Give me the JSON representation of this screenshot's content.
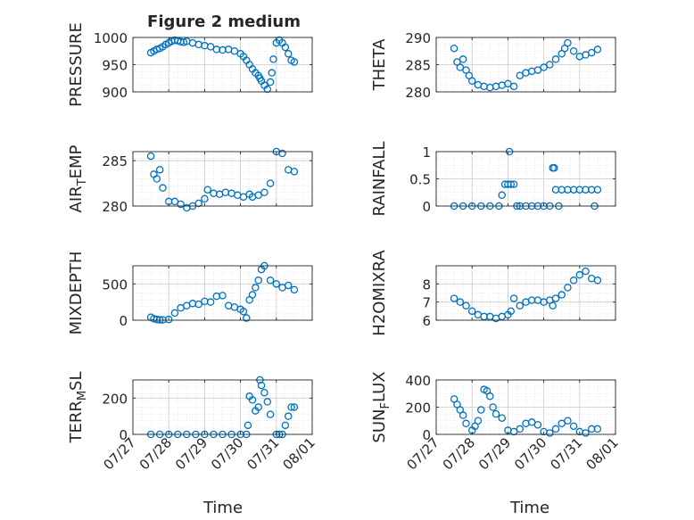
{
  "figure": {
    "title": "Figure 2 medium",
    "marker_color": "#0072BD",
    "date_ticks": [
      "07/27",
      "07/28",
      "07/29",
      "07/30",
      "07/31",
      "08/01"
    ],
    "time_label": "Time"
  },
  "chart_data": [
    {
      "type": "scatter",
      "id": "pressure",
      "ylabel": "PRESSURE",
      "xlim": [
        "07/27",
        "08/01"
      ],
      "ylim": [
        900,
        1000
      ],
      "yticks": [
        "1000",
        "950",
        "900"
      ],
      "grid": true,
      "x": [
        "07/27 12:00",
        "07/27 14:00",
        "07/27 16:00",
        "07/27 18:00",
        "07/27 20:00",
        "07/27 22:00",
        "07/28 00:00",
        "07/28 02:00",
        "07/28 04:00",
        "07/28 06:00",
        "07/28 08:00",
        "07/28 10:00",
        "07/28 12:00",
        "07/28 16:00",
        "07/28 20:00",
        "07/29 00:00",
        "07/29 04:00",
        "07/29 08:00",
        "07/29 12:00",
        "07/29 16:00",
        "07/29 20:00",
        "07/30 00:00",
        "07/30 02:00",
        "07/30 04:00",
        "07/30 06:00",
        "07/30 08:00",
        "07/30 10:00",
        "07/30 12:00",
        "07/30 13:00",
        "07/30 14:00",
        "07/30 16:00",
        "07/30 18:00",
        "07/30 20:00",
        "07/30 21:00",
        "07/30 22:00",
        "07/31 00:00",
        "07/31 02:00",
        "07/31 04:00",
        "07/31 06:00",
        "07/31 08:00",
        "07/31 10:00",
        "07/31 12:00"
      ],
      "y": [
        972,
        975,
        978,
        980,
        983,
        987,
        990,
        993,
        995,
        994,
        992,
        991,
        993,
        990,
        987,
        985,
        983,
        978,
        977,
        978,
        975,
        970,
        965,
        958,
        950,
        942,
        935,
        930,
        925,
        920,
        912,
        905,
        918,
        935,
        960,
        990,
        995,
        990,
        982,
        970,
        958,
        955
      ]
    },
    {
      "type": "scatter",
      "id": "theta",
      "ylabel": "THETA",
      "xlim": [
        "07/27",
        "08/01"
      ],
      "ylim": [
        280,
        290
      ],
      "yticks": [
        "290",
        "285",
        "280"
      ],
      "grid": true,
      "x": [
        "07/27 12:00",
        "07/27 14:00",
        "07/27 16:00",
        "07/27 18:00",
        "07/27 20:00",
        "07/27 22:00",
        "07/28 00:00",
        "07/28 04:00",
        "07/28 08:00",
        "07/28 12:00",
        "07/28 16:00",
        "07/28 20:00",
        "07/29 00:00",
        "07/29 04:00",
        "07/29 08:00",
        "07/29 12:00",
        "07/29 16:00",
        "07/29 20:00",
        "07/30 00:00",
        "07/30 04:00",
        "07/30 08:00",
        "07/30 12:00",
        "07/30 14:00",
        "07/30 16:00",
        "07/30 20:00",
        "07/31 00:00",
        "07/31 04:00",
        "07/31 08:00",
        "07/31 12:00"
      ],
      "y": [
        288,
        285.5,
        284.5,
        286,
        284,
        283,
        282,
        281.3,
        281,
        280.8,
        281,
        281.2,
        281.5,
        281,
        283,
        283.5,
        283.8,
        284,
        284.5,
        285,
        286,
        287,
        288,
        289,
        287.5,
        286.5,
        286.8,
        287.2,
        287.8
      ]
    },
    {
      "type": "scatter",
      "id": "airtemp",
      "ylabel": "AIR_TEMP",
      "xlim": [
        "07/27",
        "08/01"
      ],
      "ylim": [
        280,
        286
      ],
      "yticks": [
        "285",
        "280"
      ],
      "grid": true,
      "x": [
        "07/27 12:00",
        "07/27 14:00",
        "07/27 16:00",
        "07/27 18:00",
        "07/27 20:00",
        "07/28 00:00",
        "07/28 04:00",
        "07/28 08:00",
        "07/28 12:00",
        "07/28 16:00",
        "07/28 20:00",
        "07/29 00:00",
        "07/29 02:00",
        "07/29 06:00",
        "07/29 10:00",
        "07/29 14:00",
        "07/29 18:00",
        "07/29 22:00",
        "07/30 02:00",
        "07/30 06:00",
        "07/30 08:00",
        "07/30 12:00",
        "07/30 16:00",
        "07/30 20:00",
        "07/31 00:00",
        "07/31 04:00",
        "07/31 08:00",
        "07/31 12:00"
      ],
      "y": [
        285.5,
        283.5,
        283,
        284,
        282,
        280.5,
        280.5,
        280.2,
        279.8,
        280,
        280.3,
        280.8,
        281.8,
        281.4,
        281.3,
        281.5,
        281.4,
        281.2,
        281,
        281.3,
        281,
        281.2,
        281.5,
        282.5,
        286,
        285.8,
        284,
        283.8
      ]
    },
    {
      "type": "scatter",
      "id": "rainfall",
      "ylabel": "RAINFALL",
      "xlim": [
        "07/27",
        "08/01"
      ],
      "ylim": [
        0,
        1
      ],
      "yticks": [
        "1",
        "0.5",
        "0"
      ],
      "grid": true,
      "x": [
        "07/27 12:00",
        "07/27 18:00",
        "07/28 00:00",
        "07/28 06:00",
        "07/28 12:00",
        "07/28 18:00",
        "07/28 20:00",
        "07/28 22:00",
        "07/29 00:00",
        "07/29 01:00",
        "07/29 02:00",
        "07/29 04:00",
        "07/29 06:00",
        "07/29 08:00",
        "07/29 12:00",
        "07/29 16:00",
        "07/29 20:00",
        "07/30 00:00",
        "07/30 04:00",
        "07/30 06:00",
        "07/30 07:00",
        "07/30 08:00",
        "07/30 10:00",
        "07/30 12:00",
        "07/30 16:00",
        "07/30 20:00",
        "07/31 00:00",
        "07/31 04:00",
        "07/31 08:00",
        "07/31 10:00",
        "07/31 12:00"
      ],
      "y": [
        0,
        0,
        0,
        0,
        0,
        0,
        0.2,
        0.4,
        0.4,
        1,
        0.4,
        0.4,
        0,
        0,
        0,
        0,
        0,
        0,
        0,
        0.7,
        0.7,
        0.3,
        0,
        0.3,
        0.3,
        0.3,
        0.3,
        0.3,
        0.3,
        0,
        0.3
      ]
    },
    {
      "type": "scatter",
      "id": "mixdepth",
      "ylabel": "MIXDEPTH",
      "xlim": [
        "07/27",
        "08/01"
      ],
      "ylim": [
        0,
        750
      ],
      "yticks": [
        "500",
        "0"
      ],
      "grid": true,
      "x": [
        "07/27 12:00",
        "07/27 14:00",
        "07/27 16:00",
        "07/27 18:00",
        "07/27 20:00",
        "07/28 00:00",
        "07/28 04:00",
        "07/28 08:00",
        "07/28 12:00",
        "07/28 16:00",
        "07/28 20:00",
        "07/29 00:00",
        "07/29 04:00",
        "07/29 08:00",
        "07/29 12:00",
        "07/29 16:00",
        "07/29 20:00",
        "07/30 00:00",
        "07/30 02:00",
        "07/30 04:00",
        "07/30 06:00",
        "07/30 08:00",
        "07/30 10:00",
        "07/30 12:00",
        "07/30 14:00",
        "07/30 16:00",
        "07/30 20:00",
        "07/31 00:00",
        "07/31 04:00",
        "07/31 08:00",
        "07/31 12:00"
      ],
      "y": [
        40,
        20,
        10,
        5,
        5,
        10,
        100,
        170,
        200,
        230,
        220,
        260,
        250,
        330,
        340,
        200,
        180,
        150,
        120,
        30,
        280,
        350,
        450,
        550,
        700,
        750,
        550,
        500,
        450,
        480,
        420
      ]
    },
    {
      "type": "scatter",
      "id": "h2omixra",
      "ylabel": "H2OMIXRA",
      "xlim": [
        "07/27",
        "08/01"
      ],
      "ylim": [
        6,
        9
      ],
      "yticks": [
        "8",
        "7",
        "6"
      ],
      "grid": true,
      "x": [
        "07/27 12:00",
        "07/27 16:00",
        "07/27 20:00",
        "07/28 00:00",
        "07/28 04:00",
        "07/28 08:00",
        "07/28 12:00",
        "07/28 16:00",
        "07/28 20:00",
        "07/29 00:00",
        "07/29 02:00",
        "07/29 04:00",
        "07/29 08:00",
        "07/29 12:00",
        "07/29 16:00",
        "07/29 20:00",
        "07/30 00:00",
        "07/30 04:00",
        "07/30 06:00",
        "07/30 08:00",
        "07/30 12:00",
        "07/30 16:00",
        "07/30 20:00",
        "07/31 00:00",
        "07/31 04:00",
        "07/31 08:00",
        "07/31 12:00"
      ],
      "y": [
        7.2,
        7,
        6.8,
        6.5,
        6.3,
        6.2,
        6.2,
        6.1,
        6.2,
        6.3,
        6.5,
        7.2,
        6.8,
        7,
        7.1,
        7.1,
        7,
        7.1,
        6.8,
        7.2,
        7.4,
        7.8,
        8.2,
        8.5,
        8.7,
        8.3,
        8.2
      ]
    },
    {
      "type": "scatter",
      "id": "terr_msl",
      "ylabel": "TERR_MSL",
      "xlim": [
        "07/27",
        "08/01"
      ],
      "ylim": [
        0,
        300
      ],
      "yticks": [
        "200",
        "0"
      ],
      "grid": true,
      "x": [
        "07/27 12:00",
        "07/27 18:00",
        "07/28 00:00",
        "07/28 06:00",
        "07/28 12:00",
        "07/28 18:00",
        "07/29 00:00",
        "07/29 06:00",
        "07/29 12:00",
        "07/29 18:00",
        "07/30 00:00",
        "07/30 04:00",
        "07/30 05:00",
        "07/30 06:00",
        "07/30 08:00",
        "07/30 10:00",
        "07/30 12:00",
        "07/30 13:00",
        "07/30 14:00",
        "07/30 16:00",
        "07/30 18:00",
        "07/30 20:00",
        "07/31 00:00",
        "07/31 02:00",
        "07/31 04:00",
        "07/31 06:00",
        "07/31 08:00",
        "07/31 10:00",
        "07/31 12:00"
      ],
      "y": [
        0,
        0,
        0,
        0,
        0,
        0,
        0,
        0,
        0,
        0,
        0,
        0,
        50,
        210,
        190,
        130,
        150,
        300,
        270,
        230,
        180,
        110,
        0,
        0,
        0,
        50,
        100,
        150,
        150
      ]
    },
    {
      "type": "scatter",
      "id": "sunflux",
      "ylabel": "SUN_FLUX",
      "xlim": [
        "07/27",
        "08/01"
      ],
      "ylim": [
        0,
        400
      ],
      "yticks": [
        "400",
        "200",
        "0"
      ],
      "grid": true,
      "x": [
        "07/27 12:00",
        "07/27 14:00",
        "07/27 16:00",
        "07/27 18:00",
        "07/27 20:00",
        "07/28 00:00",
        "07/28 02:00",
        "07/28 04:00",
        "07/28 06:00",
        "07/28 08:00",
        "07/28 10:00",
        "07/28 12:00",
        "07/28 14:00",
        "07/28 16:00",
        "07/28 20:00",
        "07/29 00:00",
        "07/29 04:00",
        "07/29 08:00",
        "07/29 12:00",
        "07/29 16:00",
        "07/29 20:00",
        "07/30 00:00",
        "07/30 04:00",
        "07/30 08:00",
        "07/30 12:00",
        "07/30 16:00",
        "07/30 20:00",
        "07/31 00:00",
        "07/31 04:00",
        "07/31 08:00",
        "07/31 12:00"
      ],
      "y": [
        260,
        220,
        180,
        140,
        80,
        30,
        60,
        100,
        180,
        330,
        320,
        280,
        200,
        150,
        120,
        30,
        20,
        40,
        80,
        90,
        70,
        20,
        10,
        40,
        80,
        100,
        60,
        20,
        10,
        40,
        40
      ]
    }
  ]
}
